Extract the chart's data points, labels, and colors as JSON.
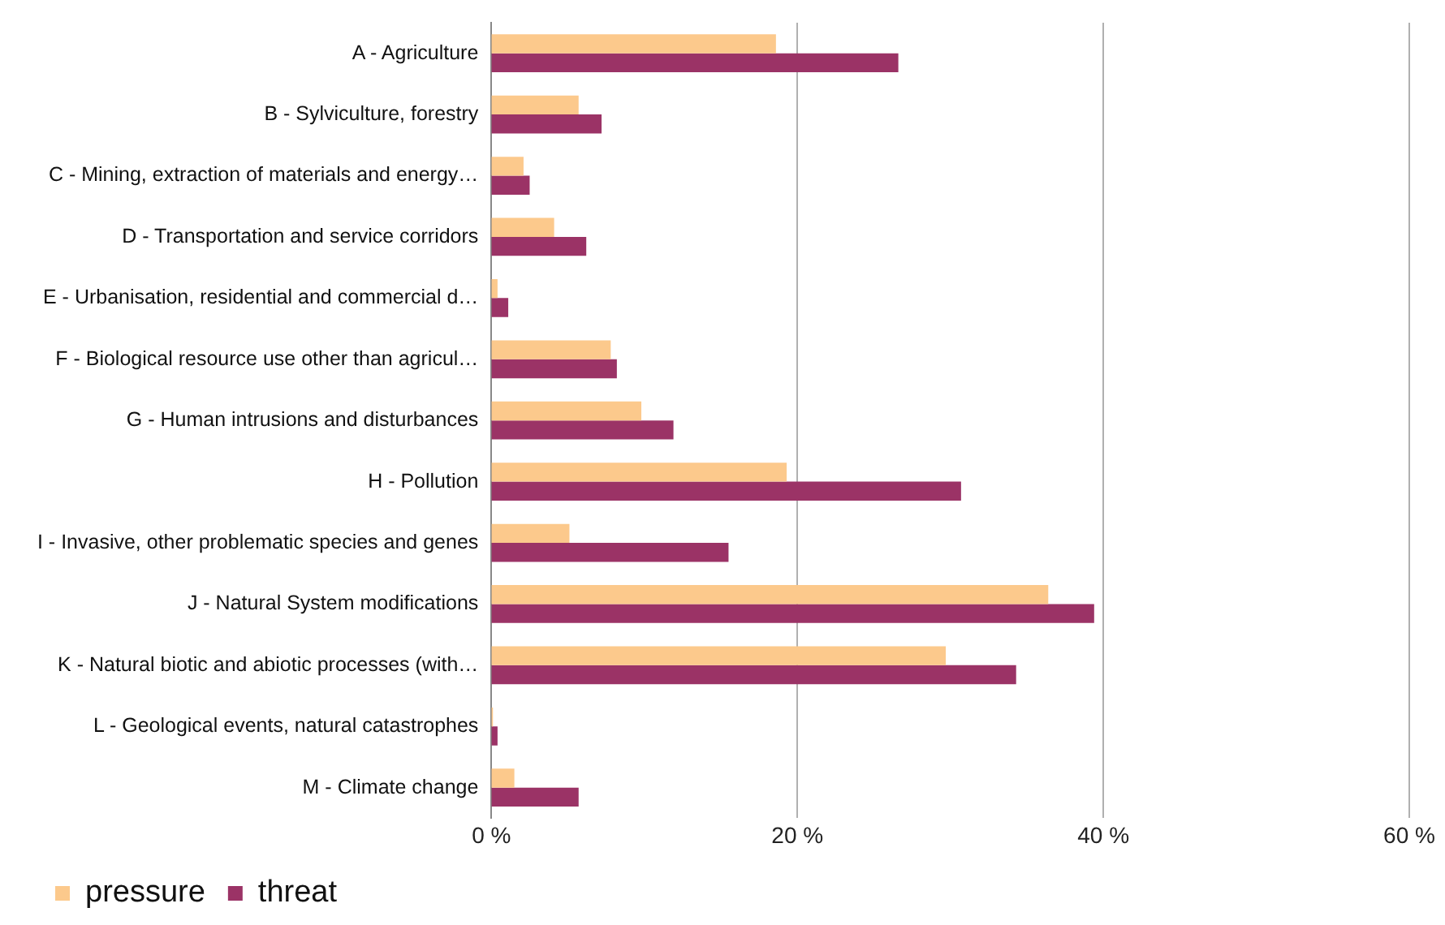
{
  "chart_data": {
    "type": "bar",
    "orientation": "horizontal",
    "categories": [
      "A - Agriculture",
      "B - Sylviculture, forestry",
      "C - Mining, extraction of materials and energy…",
      "D - Transportation and service corridors",
      "E - Urbanisation, residential and commercial d…",
      "F - Biological resource use other than agricul…",
      "G - Human intrusions and disturbances",
      "H - Pollution",
      "I - Invasive, other problematic species and genes",
      "J - Natural System modifications",
      "K - Natural biotic and abiotic processes (with…",
      "L - Geological events, natural catastrophes",
      "M - Climate change"
    ],
    "series": [
      {
        "name": "pressure",
        "color": "#fcc98c",
        "values": [
          18.6,
          5.7,
          2.1,
          4.1,
          0.4,
          7.8,
          9.8,
          19.3,
          5.1,
          36.4,
          29.7,
          0.1,
          1.5
        ]
      },
      {
        "name": "threat",
        "color": "#9b3366",
        "values": [
          26.6,
          7.2,
          2.5,
          6.2,
          1.1,
          8.2,
          11.9,
          30.7,
          15.5,
          39.4,
          34.3,
          0.4,
          5.7
        ]
      }
    ],
    "xlim": [
      0,
      60
    ],
    "xticks": [
      {
        "value": 0,
        "label": "0 %"
      },
      {
        "value": 20,
        "label": "20 %"
      },
      {
        "value": 40,
        "label": "40 %"
      },
      {
        "value": 60,
        "label": "60 %"
      }
    ],
    "grid": "x",
    "legend": "bottom left"
  }
}
